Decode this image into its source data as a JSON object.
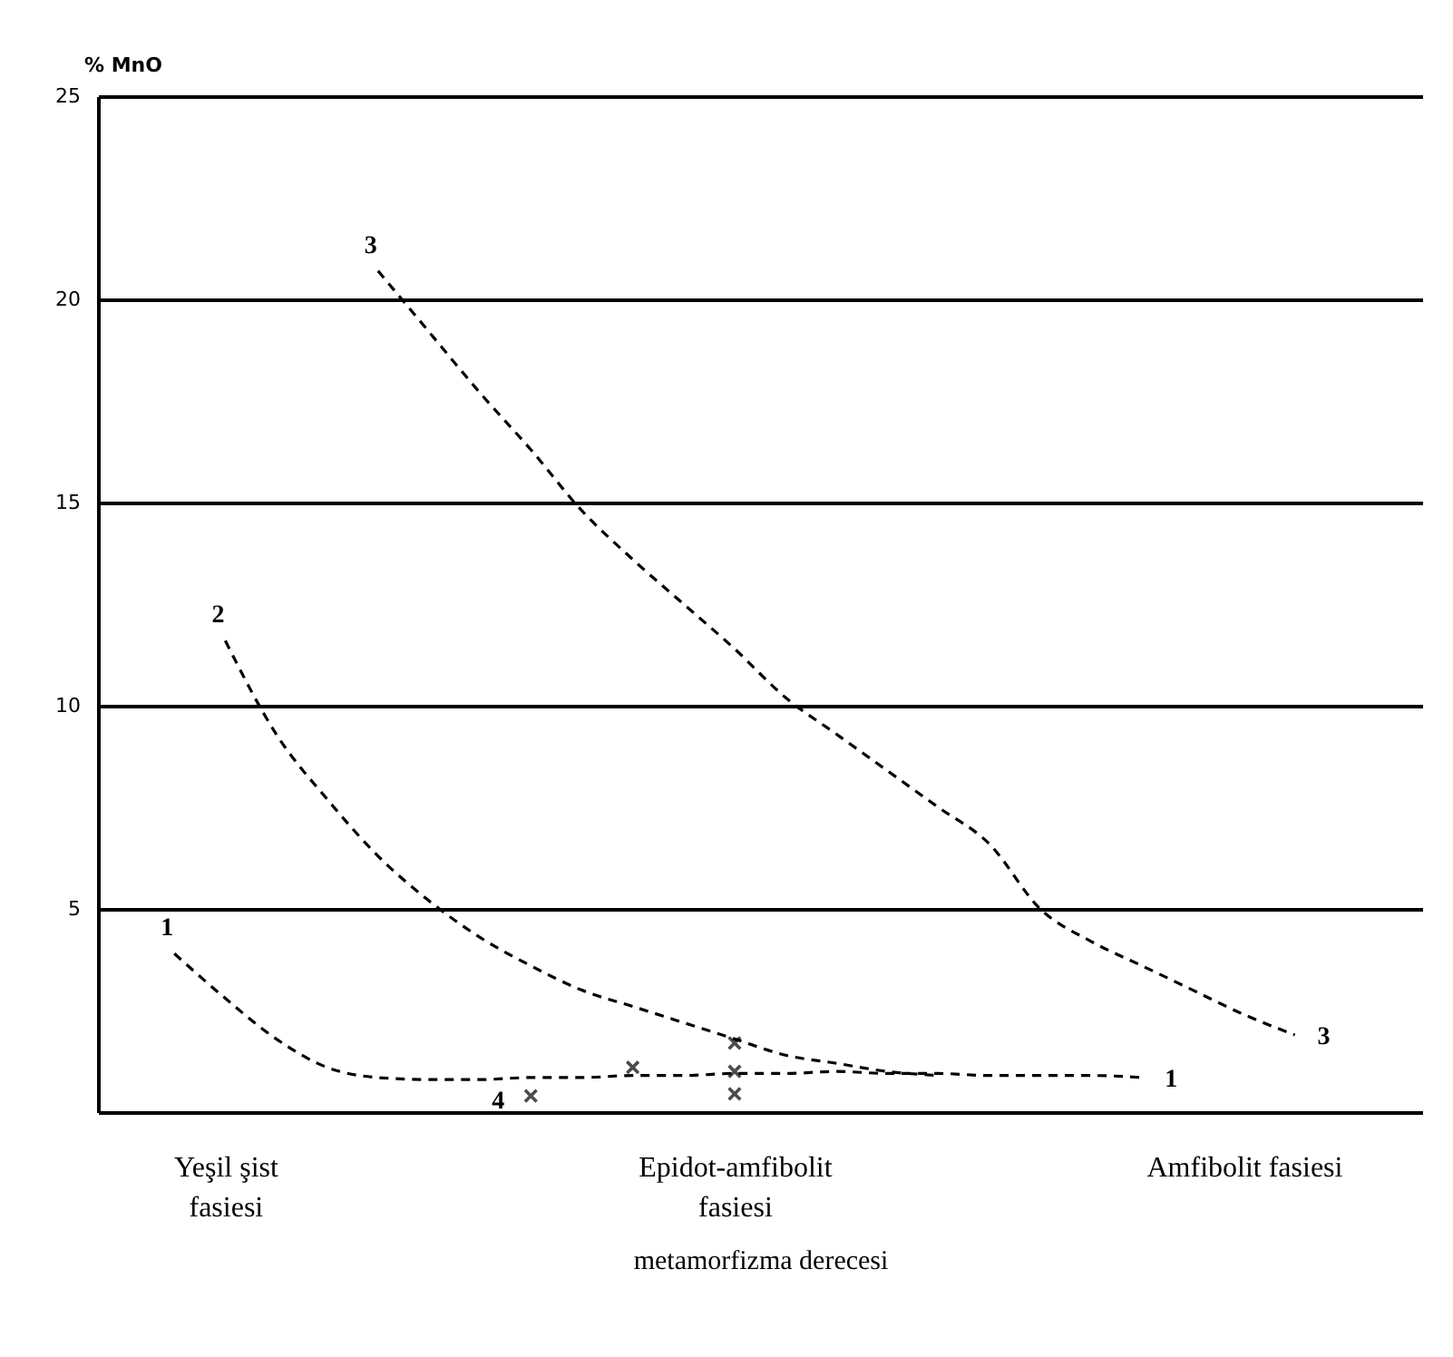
{
  "chart_data": {
    "type": "line",
    "ylabel": "% MnO",
    "xlabel": "metamorfizma derecesi",
    "categories": [
      null,
      null,
      "Yeşil şist\nfasiesi",
      null,
      null,
      null,
      null,
      null,
      null,
      null,
      null,
      null,
      "Epidot-amfibolit\nfasiesi",
      null,
      null,
      null,
      null,
      null,
      null,
      null,
      null,
      null,
      "Amfibolit fasiesi",
      null,
      null,
      null
    ],
    "ylim": [
      0,
      25
    ],
    "yticks": [
      5,
      10,
      15,
      20,
      25
    ],
    "grid": "y",
    "line_style": "dashed",
    "series": [
      {
        "name": "1",
        "color": "#000000",
        "values": [
          null,
          3.9,
          2.8,
          1.8,
          1.1,
          0.85,
          0.8,
          0.8,
          0.85,
          0.85,
          0.9,
          0.9,
          0.95,
          0.95,
          1.0,
          0.95,
          0.95,
          0.9,
          0.9,
          0.9,
          0.85,
          null,
          null,
          null,
          null,
          null
        ]
      },
      {
        "name": "2",
        "color": "#000000",
        "values": [
          null,
          null,
          11.6,
          9.3,
          7.7,
          6.3,
          5.2,
          4.3,
          3.6,
          3.0,
          2.6,
          2.2,
          1.8,
          1.4,
          1.2,
          1.0,
          0.9,
          null,
          null,
          null,
          null,
          null,
          null,
          null,
          null,
          null
        ]
      },
      {
        "name": "3",
        "color": "#000000",
        "values": [
          null,
          null,
          null,
          null,
          null,
          20.7,
          19.2,
          17.7,
          16.3,
          14.8,
          13.6,
          12.5,
          11.4,
          10.2,
          9.3,
          8.4,
          7.5,
          6.6,
          5.0,
          4.2,
          3.6,
          3.0,
          2.4,
          1.9,
          null,
          null
        ]
      },
      {
        "name": "4",
        "type": "scatter",
        "marker": "cross",
        "color": "#000000",
        "values": [
          null,
          null,
          null,
          null,
          null,
          null,
          null,
          null,
          0.4,
          null,
          1.1,
          null,
          1.7,
          null,
          null,
          null,
          null,
          null,
          null,
          null,
          null,
          null,
          null,
          null,
          null,
          null
        ]
      },
      {
        "type": "scatter",
        "marker": "cross",
        "color": "#000000",
        "values": [
          null,
          null,
          null,
          null,
          null,
          null,
          null,
          null,
          null,
          null,
          null,
          null,
          1.0,
          null,
          null,
          null,
          null,
          null,
          null,
          null,
          null,
          null,
          null,
          null,
          null,
          null
        ]
      },
      {
        "type": "scatter",
        "marker": "cross",
        "color": "#000000",
        "values": [
          null,
          null,
          null,
          null,
          null,
          null,
          null,
          null,
          null,
          null,
          null,
          null,
          0.45,
          null,
          null,
          null,
          null,
          null,
          null,
          null,
          null,
          null,
          null,
          null,
          null,
          null
        ]
      }
    ],
    "annotations": [
      "1",
      "3"
    ]
  }
}
